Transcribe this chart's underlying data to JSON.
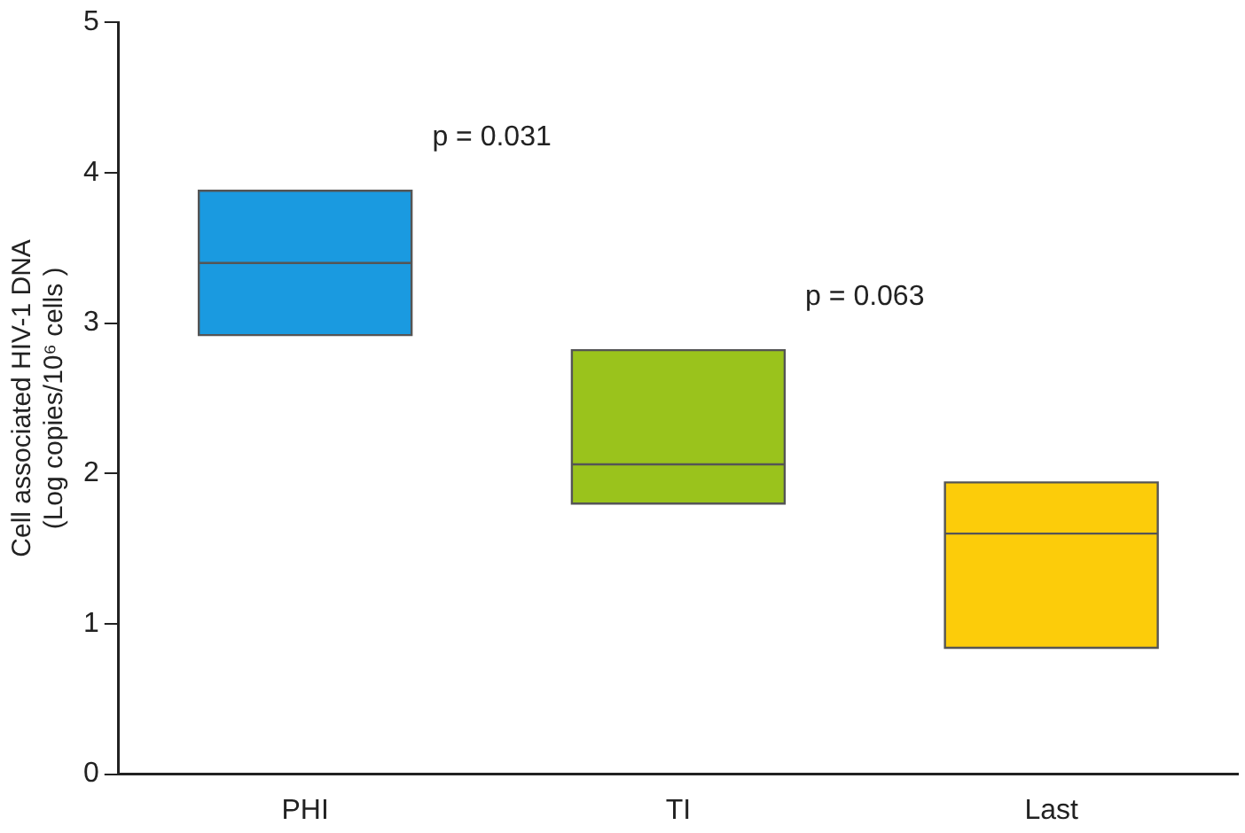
{
  "chart_data": {
    "type": "box",
    "ylabel": "Cell associated HIV-1 DNA\n(Log copies/10⁶ cells )",
    "categories": [
      "PHI",
      "TI",
      "Last"
    ],
    "boxes": [
      {
        "low": 2.92,
        "q1": 2.92,
        "median": 3.4,
        "q3": 3.88,
        "high": 3.88
      },
      {
        "low": 1.8,
        "q1": 1.8,
        "median": 2.06,
        "q3": 2.82,
        "high": 2.82
      },
      {
        "low": 0.84,
        "q1": 0.84,
        "median": 1.6,
        "q3": 1.94,
        "high": 1.94
      }
    ],
    "colors": [
      "#1a9ae0",
      "#9ac31c",
      "#fccc0a"
    ],
    "ylim": [
      0,
      5
    ],
    "yticks": [
      0,
      1,
      2,
      3,
      4,
      5
    ],
    "grid": false,
    "legend": false,
    "annotations": [
      "p = 0.031",
      "p = 0.063"
    ]
  }
}
